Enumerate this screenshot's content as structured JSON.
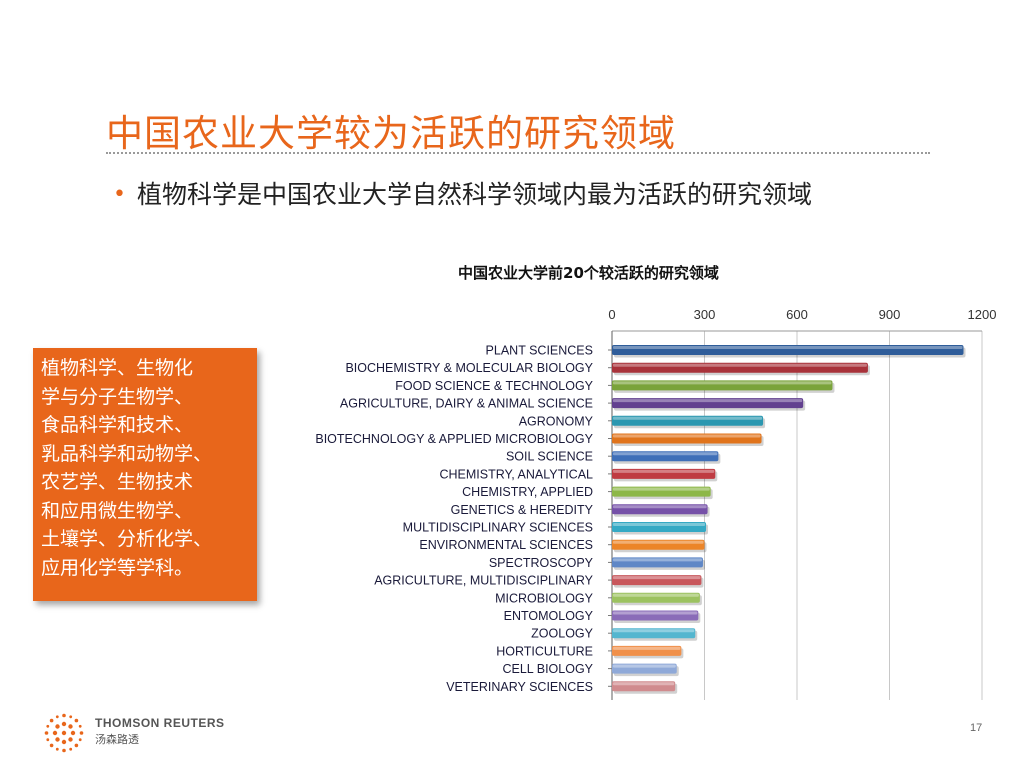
{
  "slide": {
    "title": "中国农业大学较为活跃的研究领域",
    "bullet_symbol": "•",
    "bullet": "植物科学是中国农业大学自然科学领域内最为活跃的研究领域",
    "callout": "植物科学、生物化\n学与分子生物学、\n食品科学和技术、\n乳品科学和动物学、\n农艺学、生物技术\n和应用微生物学、\n土壤学、分析化学、\n应用化学等学科。",
    "page_number": "17"
  },
  "footer": {
    "brand": "THOMSON REUTERS",
    "brand_cn": "汤森路透",
    "logo_icon": "thomson-reuters-dot-logo"
  },
  "chart_data": {
    "type": "bar",
    "orientation": "horizontal",
    "title": "中国农业大学前20个较活跃的研究领域",
    "xlabel": "",
    "ylabel": "",
    "xlim": [
      0,
      1200
    ],
    "xticks": [
      0,
      300,
      600,
      900,
      1200
    ],
    "grid": true,
    "axis_position": "top",
    "categories": [
      "PLANT SCIENCES",
      "BIOCHEMISTRY & MOLECULAR BIOLOGY",
      "FOOD SCIENCE & TECHNOLOGY",
      "AGRICULTURE, DAIRY & ANIMAL SCIENCE",
      "AGRONOMY",
      "BIOTECHNOLOGY & APPLIED MICROBIOLOGY",
      "SOIL SCIENCE",
      "CHEMISTRY, ANALYTICAL",
      "CHEMISTRY, APPLIED",
      "GENETICS & HEREDITY",
      "MULTIDISCIPLINARY SCIENCES",
      "ENVIRONMENTAL SCIENCES",
      "SPECTROSCOPY",
      "AGRICULTURE, MULTIDISCIPLINARY",
      "MICROBIOLOGY",
      "ENTOMOLOGY",
      "ZOOLOGY",
      "HORTICULTURE",
      "CELL BIOLOGY",
      "VETERINARY SCIENCES"
    ],
    "values": [
      1140,
      830,
      715,
      620,
      490,
      485,
      345,
      335,
      320,
      310,
      305,
      300,
      295,
      290,
      285,
      280,
      270,
      225,
      210,
      205
    ],
    "colors": [
      "#2f5d9a",
      "#a8323a",
      "#7aa33a",
      "#62408f",
      "#2b97b0",
      "#e0741c",
      "#3f6fb8",
      "#bf3b42",
      "#8db748",
      "#7651a8",
      "#35a9c4",
      "#ec8528",
      "#5f87c6",
      "#c8575c",
      "#9cc260",
      "#8a6cb8",
      "#54b6cf",
      "#f0904a",
      "#8fa9d8",
      "#d08b8e"
    ]
  }
}
